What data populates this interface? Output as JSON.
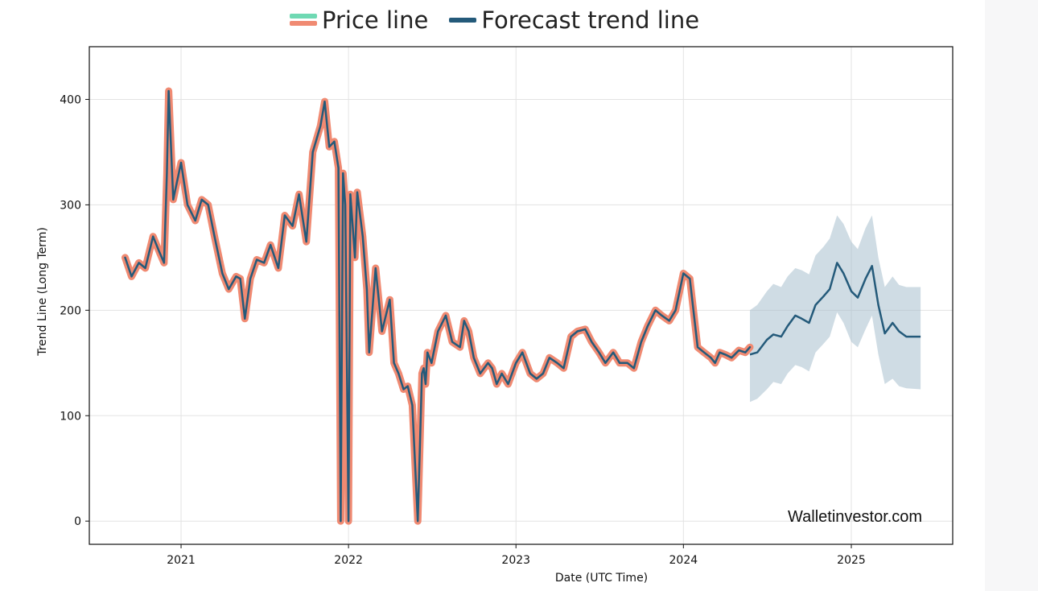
{
  "legend": {
    "price_label": "Price line",
    "forecast_label": "Forecast trend line"
  },
  "watermark": "Walletinvestor.com",
  "colors": {
    "price_outline": "#f08a72",
    "price_legend_top": "#6fd9b3",
    "trend": "#245a7a",
    "band": "#9fb9c9",
    "grid": "#e3e3e3"
  },
  "chart_data": {
    "type": "line",
    "xlabel": "Date (UTC Time)",
    "ylabel": "Trend Line (Long Term)",
    "x_ticks": [
      "2021",
      "2022",
      "2023",
      "2024",
      "2025"
    ],
    "y_ticks": [
      0,
      100,
      200,
      300,
      400
    ],
    "ylim": [
      -22,
      450
    ],
    "xlim": [
      "2020-06-15",
      "2025-08-10"
    ],
    "grid": true,
    "legend_position": "top-center",
    "series": [
      {
        "name": "Price line",
        "x": [
          "2020-09-01",
          "2020-09-15",
          "2020-10-01",
          "2020-10-15",
          "2020-11-01",
          "2020-11-15",
          "2020-11-25",
          "2020-12-01",
          "2020-12-05",
          "2020-12-15",
          "2021-01-01",
          "2021-01-15",
          "2021-02-01",
          "2021-02-15",
          "2021-03-01",
          "2021-03-15",
          "2021-04-01",
          "2021-04-15",
          "2021-05-01",
          "2021-05-10",
          "2021-05-20",
          "2021-06-01",
          "2021-06-15",
          "2021-07-01",
          "2021-07-15",
          "2021-08-01",
          "2021-08-15",
          "2021-09-01",
          "2021-09-15",
          "2021-10-01",
          "2021-10-15",
          "2021-11-01",
          "2021-11-10",
          "2021-11-20",
          "2021-12-01",
          "2021-12-10",
          "2021-12-15",
          "2021-12-20",
          "2021-12-25",
          "2022-01-01",
          "2022-01-05",
          "2022-01-10",
          "2022-01-15",
          "2022-01-20",
          "2022-02-01",
          "2022-02-10",
          "2022-02-15",
          "2022-03-01",
          "2022-03-15",
          "2022-04-01",
          "2022-04-10",
          "2022-04-20",
          "2022-05-01",
          "2022-05-10",
          "2022-05-20",
          "2022-06-01",
          "2022-06-10",
          "2022-06-14",
          "2022-06-18",
          "2022-06-22",
          "2022-07-01",
          "2022-07-15",
          "2022-08-01",
          "2022-08-15",
          "2022-09-01",
          "2022-09-10",
          "2022-09-20",
          "2022-10-01",
          "2022-10-15",
          "2022-11-01",
          "2022-11-10",
          "2022-11-20",
          "2022-12-01",
          "2022-12-15",
          "2023-01-01",
          "2023-01-15",
          "2023-02-01",
          "2023-02-15",
          "2023-03-01",
          "2023-03-15",
          "2023-04-01",
          "2023-04-15",
          "2023-05-01",
          "2023-05-15",
          "2023-06-01",
          "2023-06-15",
          "2023-07-01",
          "2023-07-15",
          "2023-08-01",
          "2023-08-15",
          "2023-09-01",
          "2023-09-15",
          "2023-10-01",
          "2023-10-15",
          "2023-11-01",
          "2023-11-15",
          "2023-12-01",
          "2023-12-15",
          "2024-01-01",
          "2024-01-15",
          "2024-02-01",
          "2024-02-15",
          "2024-03-01",
          "2024-03-10",
          "2024-03-20",
          "2024-04-01",
          "2024-04-15",
          "2024-05-01",
          "2024-05-15",
          "2024-05-25"
        ],
        "y": [
          250,
          232,
          245,
          240,
          270,
          255,
          245,
          330,
          408,
          305,
          340,
          300,
          285,
          305,
          300,
          270,
          235,
          220,
          232,
          230,
          192,
          230,
          248,
          245,
          262,
          240,
          290,
          280,
          310,
          265,
          350,
          375,
          398,
          355,
          360,
          335,
          0,
          330,
          300,
          0,
          310,
          280,
          250,
          312,
          270,
          220,
          160,
          240,
          180,
          210,
          150,
          140,
          125,
          128,
          110,
          0,
          140,
          145,
          130,
          160,
          150,
          180,
          195,
          170,
          165,
          190,
          180,
          155,
          140,
          150,
          145,
          130,
          140,
          130,
          150,
          160,
          140,
          135,
          140,
          155,
          150,
          145,
          175,
          180,
          182,
          170,
          160,
          150,
          160,
          150,
          150,
          145,
          170,
          185,
          200,
          195,
          190,
          200,
          235,
          230,
          165,
          160,
          155,
          150,
          160,
          158,
          155,
          162,
          160,
          165
        ]
      },
      {
        "name": "Forecast trend line",
        "x": [
          "2024-05-25",
          "2024-06-10",
          "2024-07-01",
          "2024-07-15",
          "2024-08-01",
          "2024-08-15",
          "2024-09-01",
          "2024-09-15",
          "2024-10-01",
          "2024-10-15",
          "2024-11-01",
          "2024-11-15",
          "2024-12-01",
          "2024-12-15",
          "2025-01-01",
          "2025-01-15",
          "2025-02-01",
          "2025-02-15",
          "2025-03-01",
          "2025-03-15",
          "2025-04-01",
          "2025-04-15",
          "2025-05-01",
          "2025-06-01"
        ],
        "y": [
          158,
          160,
          172,
          177,
          175,
          185,
          195,
          192,
          188,
          205,
          213,
          220,
          245,
          235,
          218,
          212,
          230,
          242,
          205,
          178,
          188,
          180,
          175,
          175
        ],
        "lower": [
          113,
          116,
          125,
          132,
          130,
          140,
          148,
          146,
          142,
          160,
          168,
          175,
          198,
          188,
          170,
          165,
          182,
          195,
          158,
          130,
          135,
          128,
          126,
          125
        ],
        "upper": [
          200,
          205,
          218,
          225,
          222,
          232,
          240,
          238,
          234,
          252,
          260,
          268,
          290,
          282,
          265,
          258,
          278,
          290,
          250,
          222,
          232,
          224,
          222,
          222
        ]
      }
    ]
  }
}
